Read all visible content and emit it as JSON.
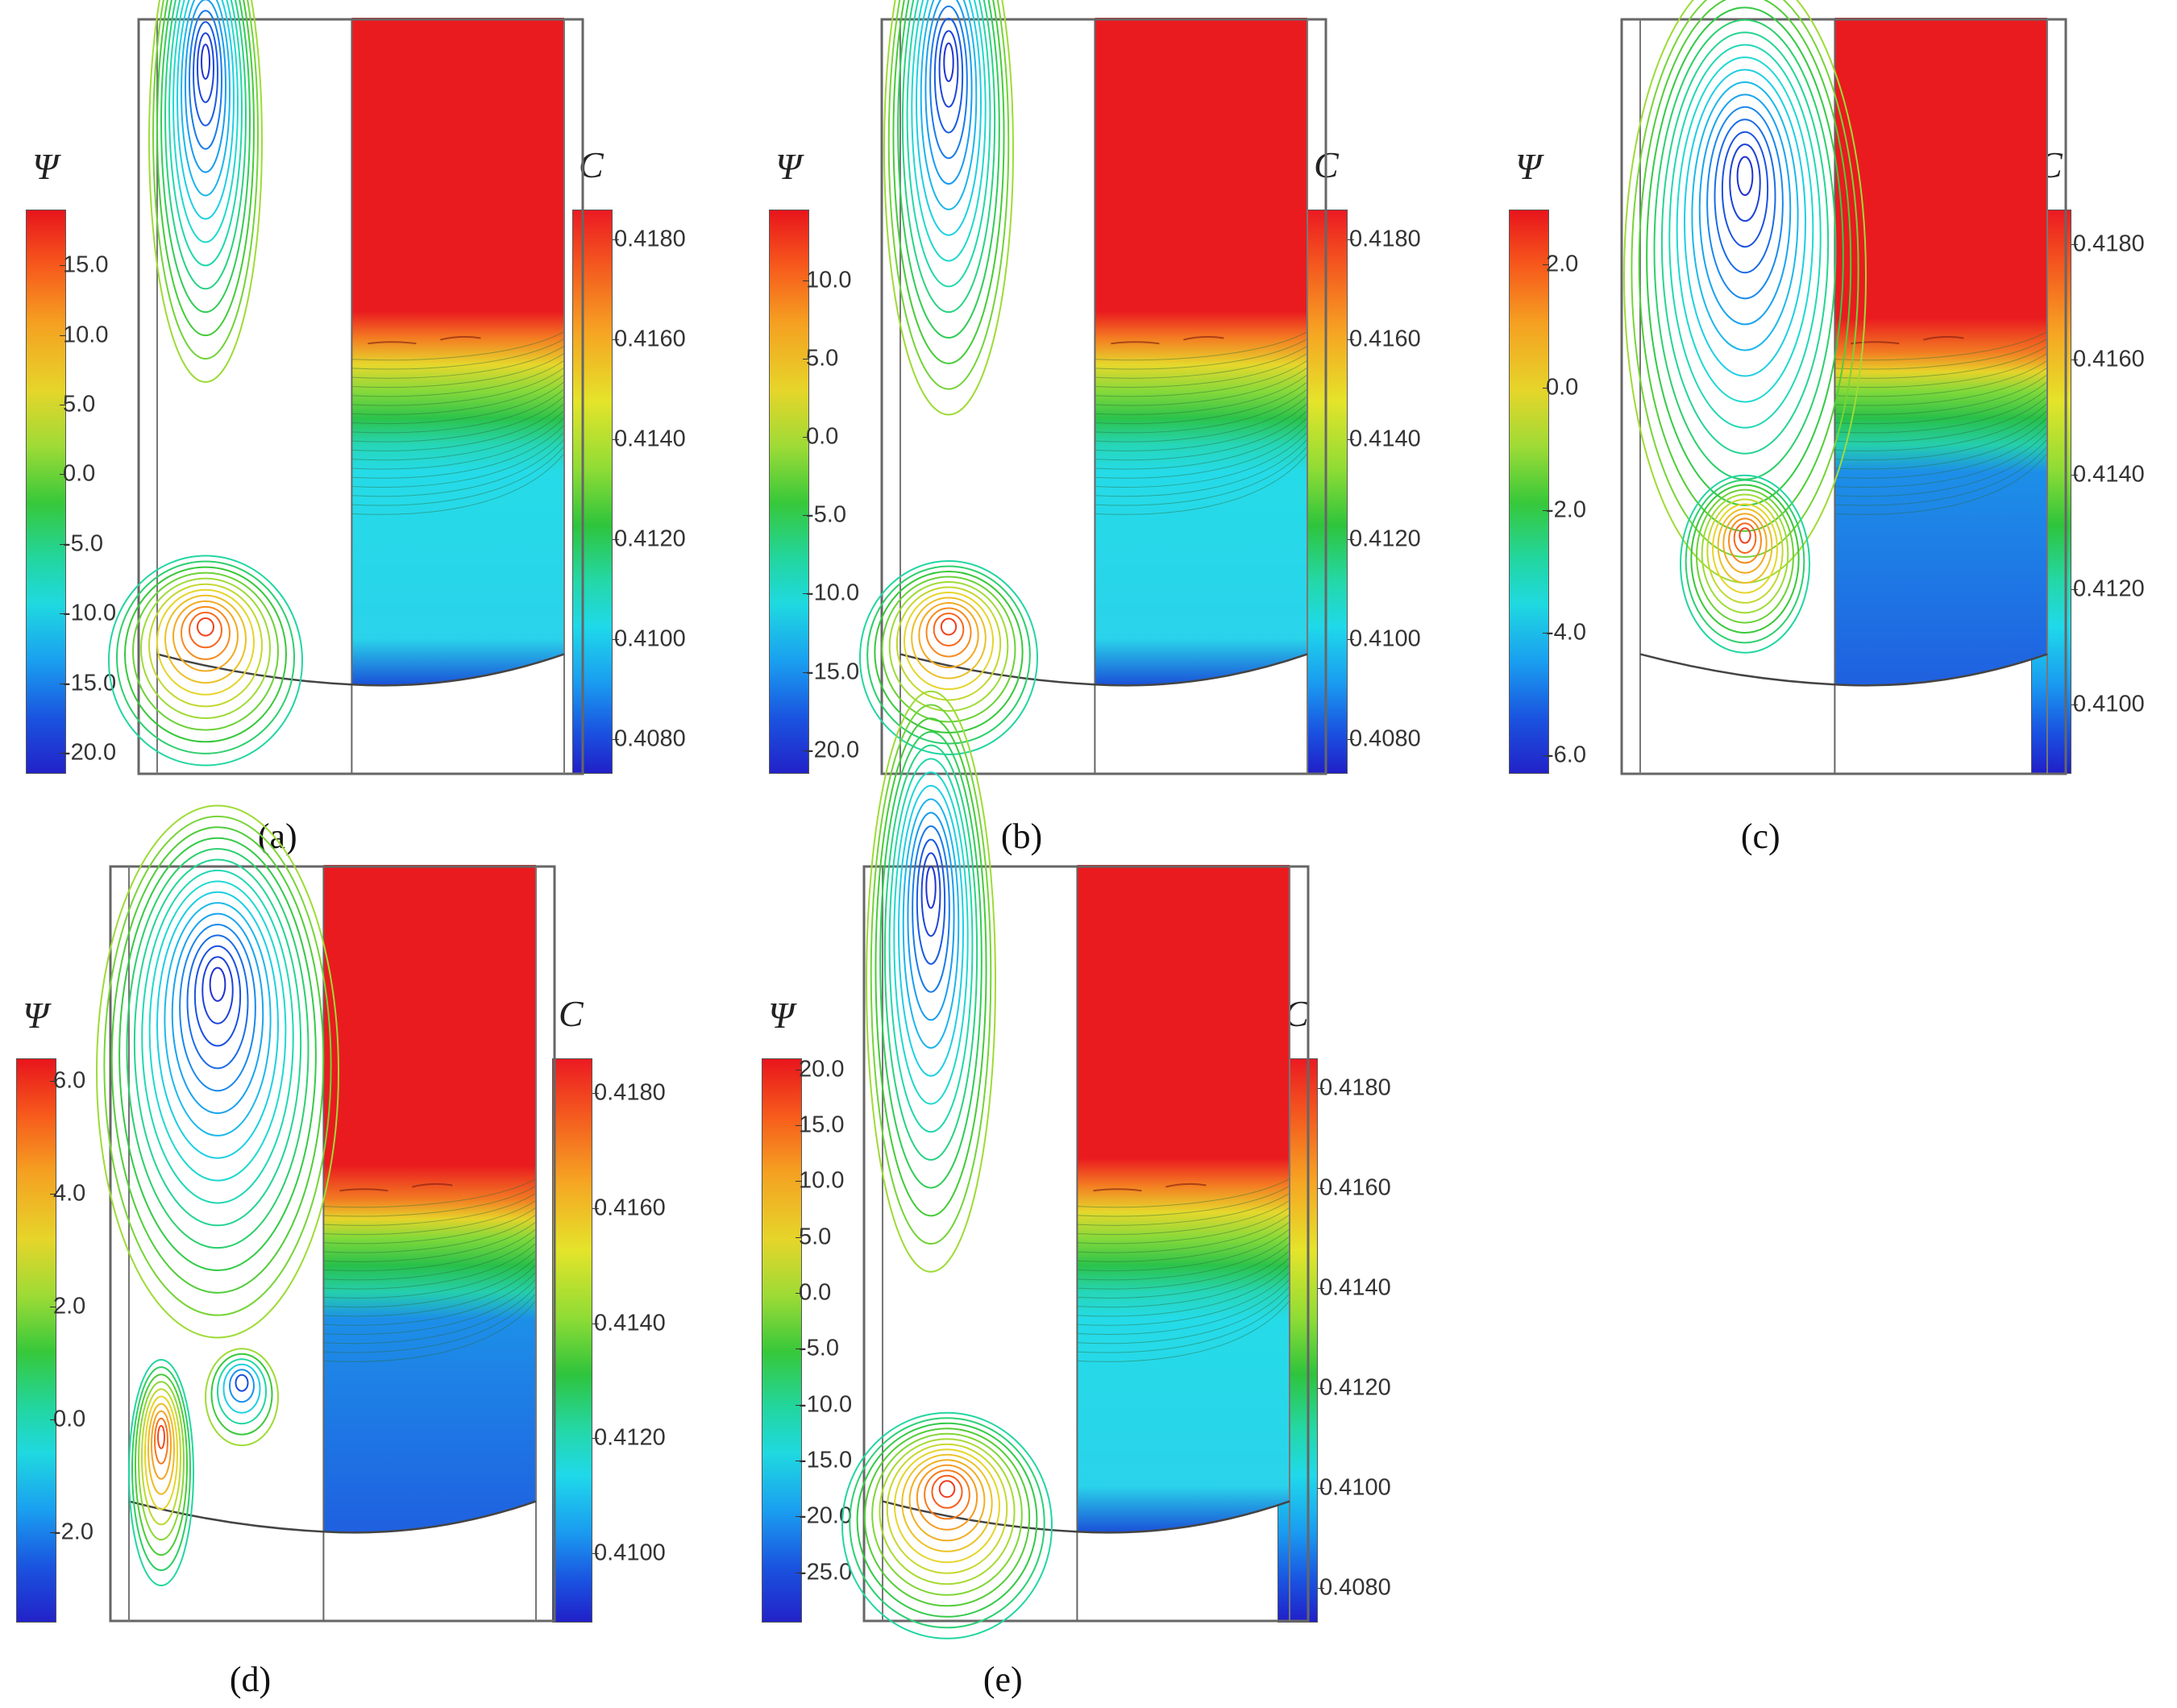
{
  "figure": {
    "panels": [
      {
        "id": "a",
        "label": "(a)",
        "psi_symbol": "Ψ",
        "c_symbol": "C",
        "psi_ticks": [
          "15.0",
          "10.0",
          "5.0",
          "0.0",
          "-5.0",
          "-10.0",
          "-15.0",
          "-20.0"
        ],
        "psi_range": [
          -21.5,
          19.0
        ],
        "c_ticks": [
          "0.4180",
          "0.4160",
          "0.4140",
          "0.4120",
          "0.4100",
          "0.4080"
        ],
        "c_range": [
          0.4073,
          0.4186
        ]
      },
      {
        "id": "b",
        "label": "(b)",
        "psi_symbol": "Ψ",
        "c_symbol": "C",
        "psi_ticks": [
          "10.0",
          "5.0",
          "0.0",
          "-5.0",
          "-10.0",
          "-15.0",
          "-20.0"
        ],
        "psi_range": [
          -21.5,
          14.5
        ],
        "c_ticks": [
          "0.4180",
          "0.4160",
          "0.4140",
          "0.4120",
          "0.4100",
          "0.4080"
        ],
        "c_range": [
          0.4073,
          0.4186
        ]
      },
      {
        "id": "c",
        "label": "(c)",
        "psi_symbol": "Ψ",
        "c_symbol": "C",
        "psi_ticks": [
          "2.0",
          "0.0",
          "-2.0",
          "-4.0",
          "-6.0"
        ],
        "psi_range": [
          -6.3,
          2.9
        ],
        "c_ticks": [
          "0.4180",
          "0.4160",
          "0.4140",
          "0.4120",
          "0.4100"
        ],
        "c_range": [
          0.4088,
          0.4186
        ]
      },
      {
        "id": "d",
        "label": "(d)",
        "psi_symbol": "Ψ",
        "c_symbol": "C",
        "psi_ticks": [
          "6.0",
          "4.0",
          "2.0",
          "0.0",
          "-2.0"
        ],
        "psi_range": [
          -3.6,
          6.4
        ],
        "c_ticks": [
          "0.4180",
          "0.4160",
          "0.4140",
          "0.4120",
          "0.4100"
        ],
        "c_range": [
          0.4088,
          0.4186
        ]
      },
      {
        "id": "e",
        "label": "(e)",
        "psi_symbol": "Ψ",
        "c_symbol": "C",
        "psi_ticks": [
          "20.0",
          "15.0",
          "10.0",
          "5.0",
          "0.0",
          "-5.0",
          "-10.0",
          "-15.0",
          "-20.0",
          "-25.0"
        ],
        "psi_range": [
          -29.5,
          21.0
        ],
        "c_ticks": [
          "0.4180",
          "0.4160",
          "0.4140",
          "0.4120",
          "0.4100",
          "0.4080"
        ],
        "c_range": [
          0.4073,
          0.4186
        ]
      }
    ]
  }
}
